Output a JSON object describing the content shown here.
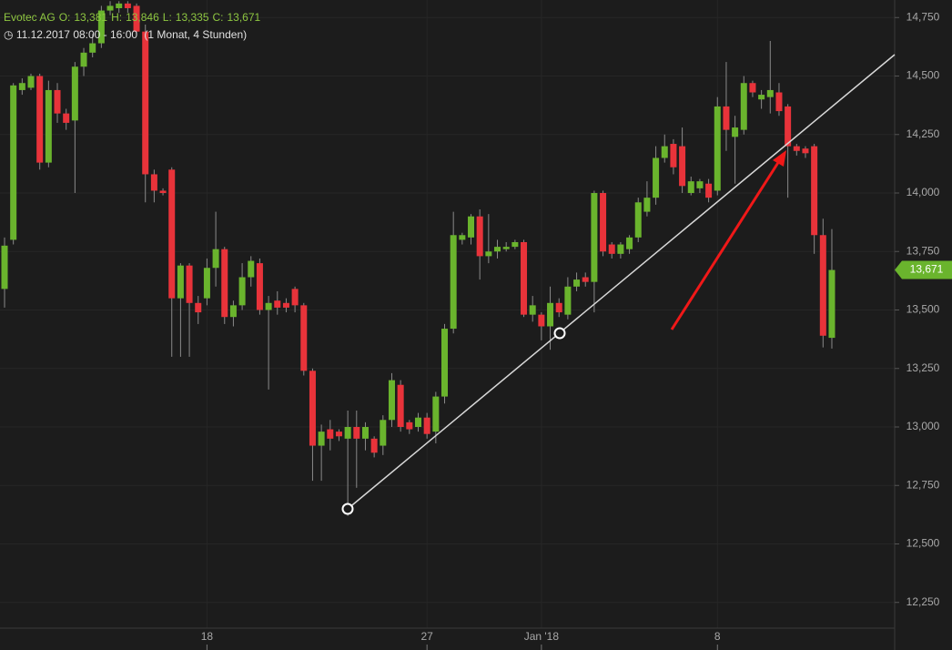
{
  "chart_data": {
    "type": "candlestick",
    "title": "Evotec AG",
    "quote": [
      {
        "label": "O:",
        "value": "13,381"
      },
      {
        "label": "H:",
        "value": "13,846"
      },
      {
        "label": "L:",
        "value": "13,335"
      },
      {
        "label": "C:",
        "value": "13,671"
      }
    ],
    "period": "11.12.2017 08:00 - 16:00",
    "interval": "(1 Monat, 4 Stunden)",
    "up_color": "#6ab42d",
    "down_color": "#e8333a",
    "grid": true,
    "categories": [
      null,
      null,
      null,
      null,
      null,
      null,
      null,
      null,
      null,
      null,
      null,
      null,
      null,
      null,
      null,
      null,
      null,
      null,
      null,
      null,
      null,
      null,
      null,
      "18",
      null,
      null,
      null,
      null,
      null,
      null,
      null,
      null,
      null,
      null,
      null,
      null,
      null,
      null,
      null,
      null,
      null,
      null,
      null,
      null,
      null,
      null,
      null,
      null,
      "27",
      null,
      null,
      null,
      null,
      null,
      null,
      null,
      null,
      null,
      null,
      null,
      null,
      "Jan '18",
      null,
      null,
      null,
      null,
      null,
      null,
      null,
      null,
      null,
      null,
      null,
      null,
      null,
      null,
      null,
      null,
      null,
      null,
      null,
      "8",
      null,
      null,
      null,
      null,
      null,
      null,
      null,
      null,
      null,
      null,
      null,
      null,
      null
    ],
    "open": [
      13590,
      13800,
      14440,
      14450,
      14500,
      14130,
      14440,
      14340,
      14310,
      14540,
      14600,
      14640,
      14780,
      14790,
      14810,
      14800,
      14690,
      14080,
      14010,
      14100,
      13550,
      13690,
      13530,
      13550,
      13680,
      13760,
      13470,
      13520,
      13640,
      13700,
      13500,
      13540,
      13530,
      13590,
      13520,
      13240,
      12920,
      12990,
      12980,
      12950,
      13000,
      12950,
      12950,
      12920,
      13030,
      13180,
      13020,
      13000,
      13040,
      12980,
      13130,
      13420,
      13800,
      13810,
      13900,
      13730,
      13750,
      13760,
      13770,
      13790,
      13480,
      13480,
      13430,
      13530,
      13480,
      13600,
      13640,
      13620,
      14000,
      13780,
      13740,
      13760,
      13810,
      13920,
      13980,
      14150,
      14210,
      14200,
      14000,
      14020,
      14040,
      14010,
      14370,
      14240,
      14270,
      14470,
      14400,
      14410,
      14430,
      14370,
      14200,
      14190,
      14200,
      13820,
      13381
    ],
    "high": [
      13810,
      14470,
      14490,
      14510,
      14510,
      14480,
      14470,
      14360,
      14560,
      14620,
      14680,
      14800,
      14820,
      14820,
      14820,
      14810,
      14720,
      14100,
      14020,
      14110,
      13700,
      13700,
      13560,
      13720,
      13920,
      13770,
      13540,
      13700,
      13730,
      13720,
      13560,
      13580,
      13550,
      13600,
      13530,
      13250,
      13010,
      13030,
      12990,
      13070,
      13070,
      13020,
      12960,
      13050,
      13230,
      13200,
      13030,
      13060,
      13060,
      13150,
      13440,
      13920,
      13830,
      13910,
      13930,
      13910,
      13800,
      13790,
      13800,
      13800,
      13560,
      13490,
      13600,
      13550,
      13640,
      13660,
      13660,
      14010,
      14010,
      13790,
      13790,
      13820,
      13980,
      14050,
      14200,
      14250,
      14230,
      14280,
      14070,
      14060,
      14060,
      14410,
      14560,
      14330,
      14500,
      14480,
      14440,
      14650,
      14470,
      14380,
      14210,
      14200,
      14210,
      13890,
      13846
    ],
    "low": [
      13510,
      13780,
      14420,
      14440,
      14100,
      14110,
      14300,
      14270,
      14000,
      14500,
      14580,
      14620,
      14760,
      14770,
      14770,
      14680,
      13960,
      13960,
      13990,
      13300,
      13300,
      13300,
      13440,
      13520,
      13600,
      13440,
      13430,
      13500,
      13600,
      13480,
      13160,
      13480,
      13490,
      13490,
      13220,
      12770,
      12770,
      12900,
      12940,
      12620,
      12740,
      12900,
      12870,
      12880,
      13000,
      12980,
      12970,
      12980,
      12950,
      12930,
      13100,
      13400,
      13780,
      13780,
      13630,
      13700,
      13720,
      13750,
      13760,
      13470,
      13450,
      13370,
      13330,
      13470,
      13460,
      13580,
      13600,
      13490,
      13730,
      13720,
      13720,
      13740,
      13790,
      13900,
      13950,
      14130,
      14080,
      14000,
      13990,
      14000,
      13960,
      13990,
      14180,
      14040,
      14250,
      14410,
      14360,
      14340,
      14330,
      13980,
      14160,
      14150,
      13740,
      13340,
      13335
    ],
    "close": [
      13775,
      14460,
      14470,
      14500,
      14130,
      14440,
      14340,
      14300,
      14540,
      14600,
      14640,
      14780,
      14800,
      14810,
      14790,
      14690,
      14080,
      14010,
      14000,
      13550,
      13690,
      13530,
      13490,
      13680,
      13760,
      13470,
      13520,
      13640,
      13710,
      13500,
      13530,
      13510,
      13510,
      13520,
      13240,
      12920,
      12980,
      12950,
      12960,
      13000,
      12950,
      13000,
      12890,
      13030,
      13200,
      13000,
      12990,
      13040,
      12970,
      13130,
      13420,
      13820,
      13820,
      13900,
      13730,
      13750,
      13770,
      13770,
      13790,
      13480,
      13520,
      13430,
      13530,
      13490,
      13600,
      13630,
      13620,
      14000,
      13750,
      13740,
      13780,
      13810,
      13960,
      13980,
      14150,
      14200,
      14110,
      14030,
      14050,
      14050,
      13980,
      14370,
      14270,
      14280,
      14470,
      14430,
      14420,
      14440,
      14350,
      14200,
      14180,
      14170,
      13820,
      13390,
      13671
    ],
    "last_price": {
      "value": 13671,
      "label": "13,671"
    },
    "ylim": [
      12140,
      14825
    ],
    "yticks": [
      {
        "value": 12250,
        "label": "12,250"
      },
      {
        "value": 12500,
        "label": "12,500"
      },
      {
        "value": 12750,
        "label": "12,750"
      },
      {
        "value": 13000,
        "label": "13,000"
      },
      {
        "value": 13250,
        "label": "13,250"
      },
      {
        "value": 13500,
        "label": "13,500"
      },
      {
        "value": 13750,
        "label": "13,750"
      },
      {
        "value": 14000,
        "label": "14,000"
      },
      {
        "value": 14250,
        "label": "14,250"
      },
      {
        "value": 14500,
        "label": "14,500"
      },
      {
        "value": 14750,
        "label": "14,750"
      }
    ]
  }
}
